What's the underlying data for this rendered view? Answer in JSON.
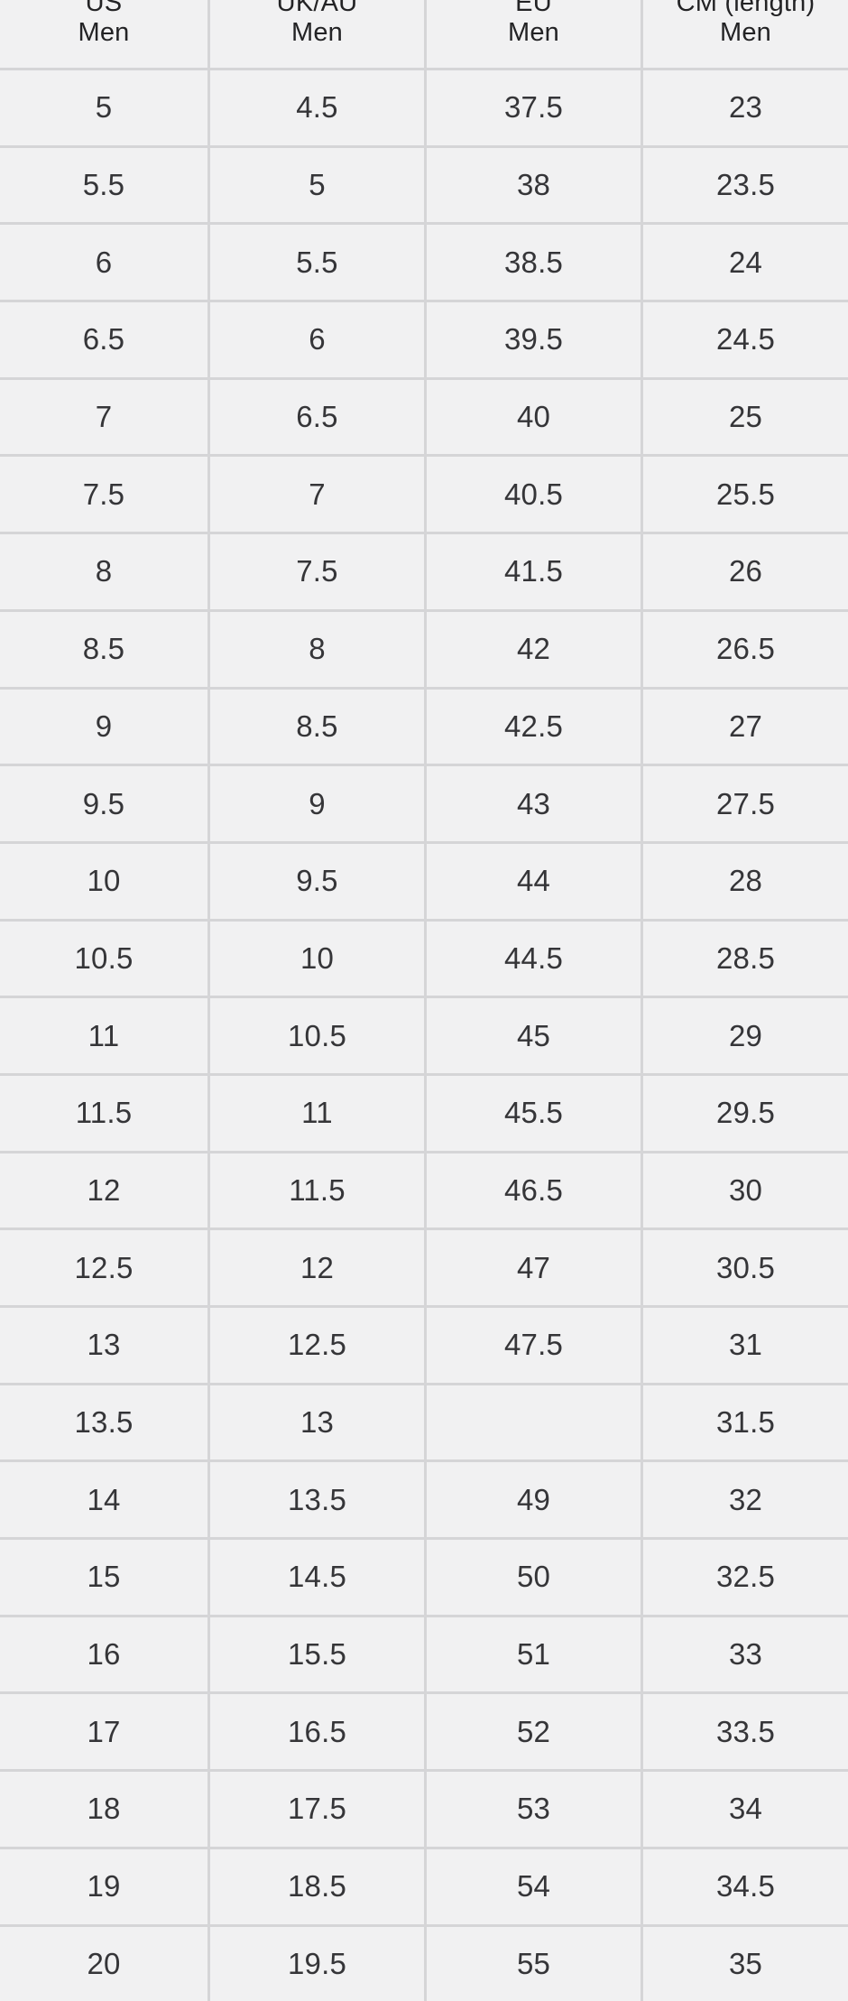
{
  "table": {
    "columns": [
      {
        "line1": "US",
        "line2": "Men"
      },
      {
        "line1": "UK/AU",
        "line2": "Men"
      },
      {
        "line1": "EU",
        "line2": "Men"
      },
      {
        "line1": "CM (length)",
        "line2": "Men"
      }
    ],
    "rows": [
      [
        "5",
        "4.5",
        "37.5",
        "23"
      ],
      [
        "5.5",
        "5",
        "38",
        "23.5"
      ],
      [
        "6",
        "5.5",
        "38.5",
        "24"
      ],
      [
        "6.5",
        "6",
        "39.5",
        "24.5"
      ],
      [
        "7",
        "6.5",
        "40",
        "25"
      ],
      [
        "7.5",
        "7",
        "40.5",
        "25.5"
      ],
      [
        "8",
        "7.5",
        "41.5",
        "26"
      ],
      [
        "8.5",
        "8",
        "42",
        "26.5"
      ],
      [
        "9",
        "8.5",
        "42.5",
        "27"
      ],
      [
        "9.5",
        "9",
        "43",
        "27.5"
      ],
      [
        "10",
        "9.5",
        "44",
        "28"
      ],
      [
        "10.5",
        "10",
        "44.5",
        "28.5"
      ],
      [
        "11",
        "10.5",
        "45",
        "29"
      ],
      [
        "11.5",
        "11",
        "45.5",
        "29.5"
      ],
      [
        "12",
        "11.5",
        "46.5",
        "30"
      ],
      [
        "12.5",
        "12",
        "47",
        "30.5"
      ],
      [
        "13",
        "12.5",
        "47.5",
        "31"
      ],
      [
        "13.5",
        "13",
        "",
        "31.5"
      ],
      [
        "14",
        "13.5",
        "49",
        "32"
      ],
      [
        "15",
        "14.5",
        "50",
        "32.5"
      ],
      [
        "16",
        "15.5",
        "51",
        "33"
      ],
      [
        "17",
        "16.5",
        "52",
        "33.5"
      ],
      [
        "18",
        "17.5",
        "53",
        "34"
      ],
      [
        "19",
        "18.5",
        "54",
        "34.5"
      ],
      [
        "20",
        "19.5",
        "55",
        "35"
      ]
    ]
  },
  "colors": {
    "cell_bg": "#f1f1f2",
    "grid_line": "#d5d5d7",
    "header_text": "#232325",
    "data_text": "#353538"
  }
}
